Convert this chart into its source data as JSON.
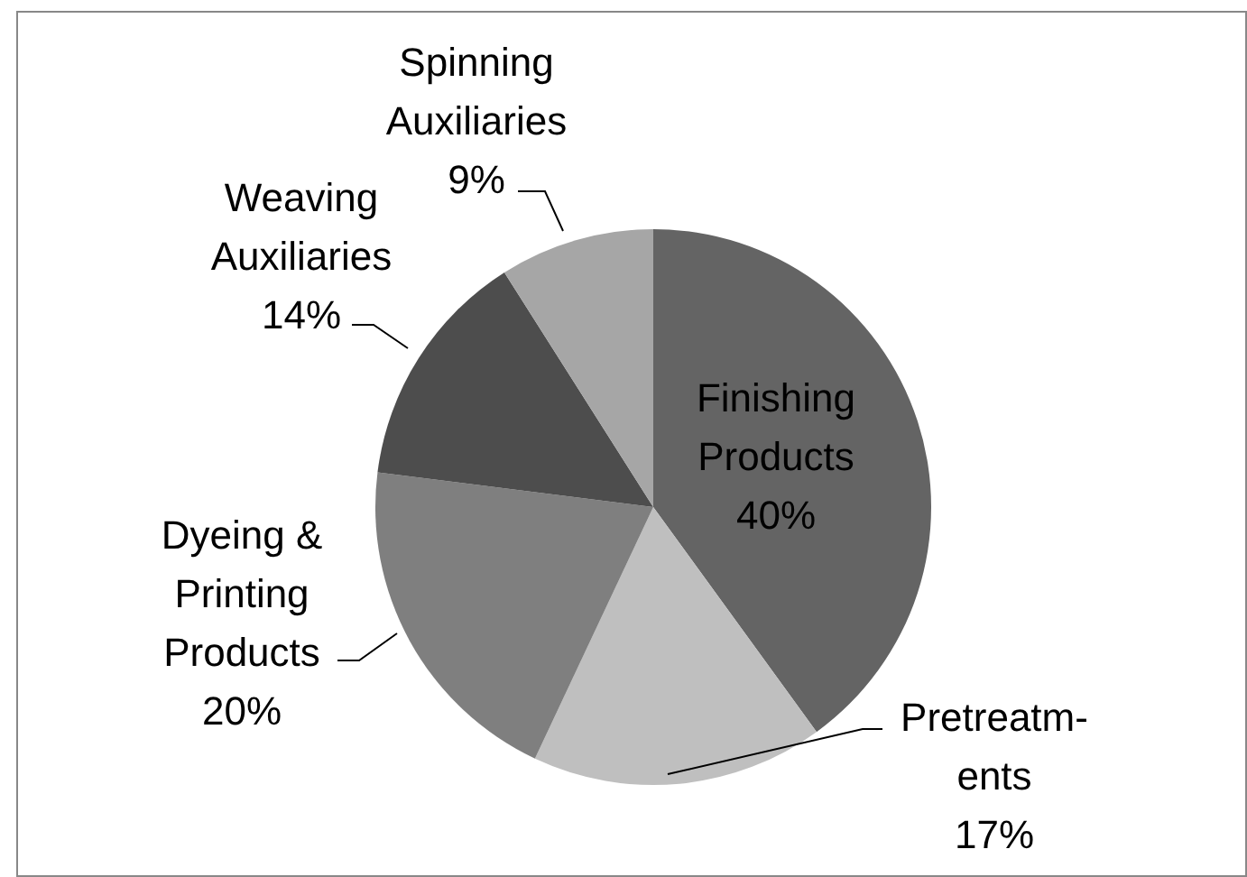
{
  "chart_data": {
    "type": "pie",
    "categories": [
      "Finishing\nProducts",
      "Pretreatm-\nents",
      "Dyeing &\nPrinting\nProducts",
      "Weaving\nAuxiliaries",
      "Spinning\nAuxiliaries"
    ],
    "values": [
      40,
      17,
      20,
      14,
      9
    ],
    "value_labels": [
      "40%",
      "17%",
      "20%",
      "14%",
      "9%"
    ],
    "colors": [
      "#646464",
      "#bfbfbf",
      "#7f7f7f",
      "#4d4d4d",
      "#a6a6a6"
    ],
    "legend": false
  }
}
